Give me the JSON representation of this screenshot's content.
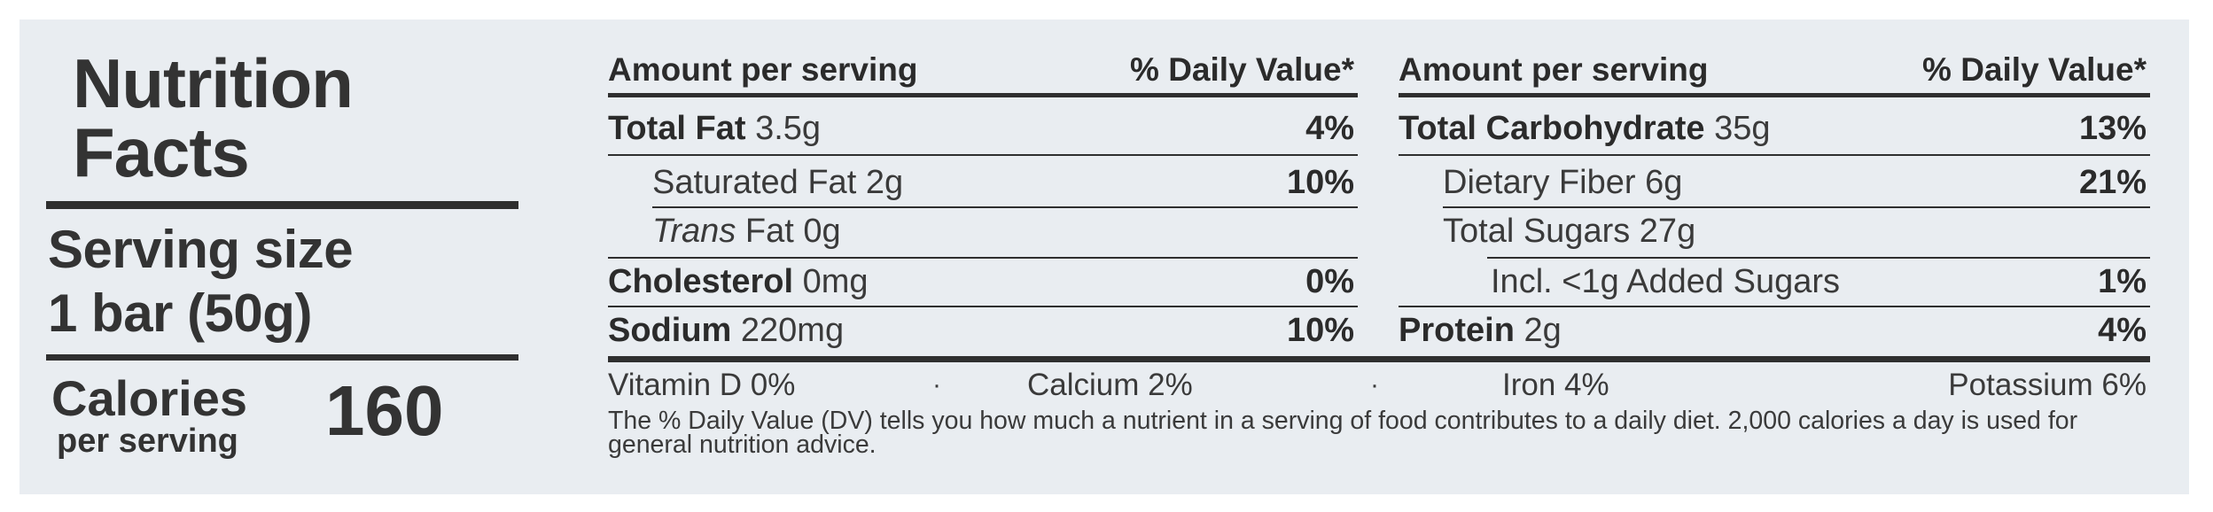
{
  "label": {
    "title_line1": "Nutrition",
    "title_line2": "Facts",
    "serving_size_label": "Serving size",
    "serving_size_value": "1 bar (50g)",
    "calories_label": "Calories",
    "per_serving_label": "per serving",
    "calories_value": "160"
  },
  "columns": {
    "left_header_amount": "Amount per serving",
    "left_header_dv": "% Daily Value*",
    "right_header_amount": "Amount per serving",
    "right_header_dv": "% Daily Value*"
  },
  "left_rows": [
    {
      "name": "Total Fat",
      "amount": "3.5g",
      "dv": "4%"
    },
    {
      "name": "Saturated Fat",
      "amount": "2g",
      "dv": "10%"
    },
    {
      "name_italic": "Trans",
      "name": "Fat",
      "amount": "0g",
      "dv": ""
    },
    {
      "name": "Cholesterol",
      "amount": "0mg",
      "dv": "0%"
    },
    {
      "name": "Sodium",
      "amount": "220mg",
      "dv": "10%"
    }
  ],
  "right_rows": [
    {
      "name": "Total Carbohydrate",
      "amount": "35g",
      "dv": "13%"
    },
    {
      "name": "Dietary Fiber",
      "amount": "6g",
      "dv": "21%"
    },
    {
      "name": "Total Sugars",
      "amount": "27g",
      "dv": ""
    },
    {
      "name": "Incl. <1g Added Sugars",
      "amount": "",
      "dv": "1%"
    },
    {
      "name": "Protein",
      "amount": "2g",
      "dv": "4%"
    }
  ],
  "vitamins": [
    {
      "text": "Vitamin D 0%"
    },
    {
      "text": "Calcium 2%"
    },
    {
      "text": "Iron 4%"
    },
    {
      "text": "Potassium 6%"
    }
  ],
  "separator": "·",
  "footnote": "The % Daily Value (DV) tells you how much a nutrient in a serving of food contributes to a daily diet. 2,000 calories a day is used for general nutrition advice."
}
